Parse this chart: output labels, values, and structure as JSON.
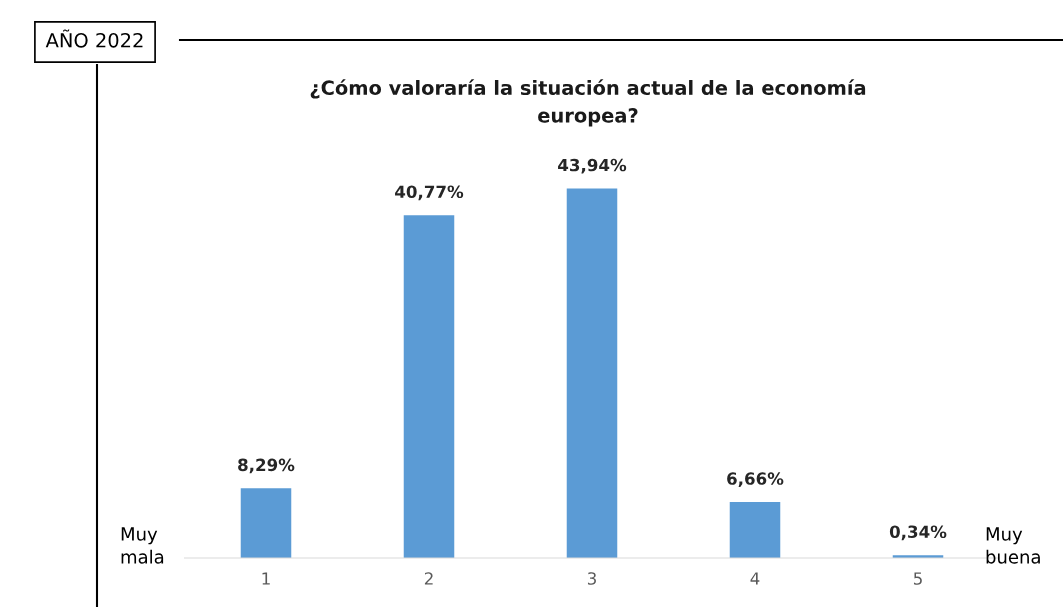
{
  "chart_data": {
    "type": "bar",
    "title": "¿Cómo valoraría la situación actual de la economía\neuropea?",
    "categories": [
      "1",
      "2",
      "3",
      "4",
      "5"
    ],
    "values": [
      8.29,
      40.77,
      43.94,
      6.66,
      0.34
    ],
    "value_labels": [
      "8,29%",
      "40,77%",
      "43,94%",
      "6,66%",
      "0,34%"
    ],
    "color": "#5b9bd5",
    "grid": false,
    "tick_labels": "x",
    "annotations": [
      "AÑO 2022",
      "Muy\nmala",
      "Muy\nbuena"
    ]
  }
}
